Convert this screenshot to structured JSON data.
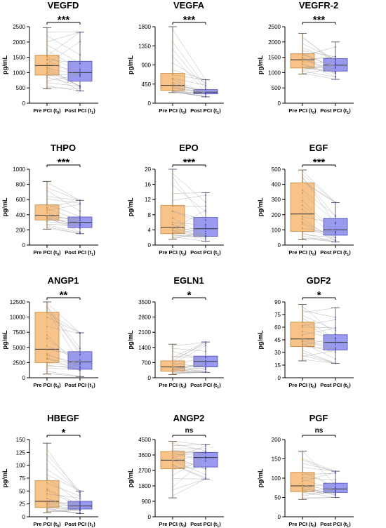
{
  "colors": {
    "pre": "#f6bd7b",
    "post": "#8f8ff0",
    "pre_stroke": "#c98a3c",
    "post_stroke": "#4a4ac0",
    "lines": "#9a9a9a"
  },
  "chart_data": [
    {
      "type": "box",
      "title": "VEGFD",
      "ylabel": "pg/mL",
      "significance": "***",
      "ylim": [
        0,
        2500
      ],
      "ticks": [
        0,
        500,
        1000,
        1500,
        2000,
        2500
      ],
      "categories": [
        "Pre PCI (t0)",
        "Post PCI (t1)"
      ],
      "series": [
        {
          "min": 470,
          "q1": 920,
          "median": 1230,
          "q3": 1570,
          "max": 2470
        },
        {
          "min": 400,
          "q1": 720,
          "median": 1000,
          "q3": 1370,
          "max": 2320
        }
      ]
    },
    {
      "type": "box",
      "title": "VEGFA",
      "ylabel": "pg/mL",
      "significance": "***",
      "ylim": [
        0,
        1800
      ],
      "ticks": [
        0,
        450,
        900,
        1350,
        1800
      ],
      "categories": [
        "Pre PCI (t0)",
        "Post PCI (t1)"
      ],
      "series": [
        {
          "min": 250,
          "q1": 300,
          "median": 420,
          "q3": 700,
          "max": 1800
        },
        {
          "min": 150,
          "q1": 220,
          "median": 260,
          "q3": 320,
          "max": 550
        }
      ]
    },
    {
      "type": "box",
      "title": "VEGFR-2",
      "ylabel": "pg/mL",
      "significance": "***",
      "ylim": [
        0,
        2500
      ],
      "ticks": [
        0,
        500,
        1000,
        1500,
        2000,
        2500
      ],
      "categories": [
        "Pre PCI (t0)",
        "Post PCI (t1)"
      ],
      "series": [
        {
          "min": 950,
          "q1": 1150,
          "median": 1420,
          "q3": 1620,
          "max": 2280
        },
        {
          "min": 780,
          "q1": 1050,
          "median": 1240,
          "q3": 1460,
          "max": 2000
        }
      ]
    },
    {
      "type": "box",
      "title": "THPO",
      "ylabel": "pg/mL",
      "significance": "***",
      "ylim": [
        0,
        1000
      ],
      "ticks": [
        0,
        200,
        400,
        600,
        800,
        1000
      ],
      "categories": [
        "Pre PCI (t0)",
        "Post PCI (t1)"
      ],
      "series": [
        {
          "min": 210,
          "q1": 330,
          "median": 390,
          "q3": 530,
          "max": 840
        },
        {
          "min": 150,
          "q1": 230,
          "median": 300,
          "q3": 370,
          "max": 590
        }
      ]
    },
    {
      "type": "box",
      "title": "EPO",
      "ylabel": "pg/mL",
      "significance": "***",
      "ylim": [
        0,
        20
      ],
      "ticks": [
        0,
        4,
        8,
        12,
        16,
        20
      ],
      "categories": [
        "Pre PCI (t0)",
        "Post PCI (t1)"
      ],
      "series": [
        {
          "min": 1.5,
          "q1": 3.0,
          "median": 4.7,
          "q3": 10.5,
          "max": 20.0
        },
        {
          "min": 1.0,
          "q1": 2.3,
          "median": 4.3,
          "q3": 7.3,
          "max": 13.8
        }
      ]
    },
    {
      "type": "box",
      "title": "EGF",
      "ylabel": "pg/mL",
      "significance": "***",
      "ylim": [
        0,
        500
      ],
      "ticks": [
        0,
        100,
        200,
        300,
        400,
        500
      ],
      "categories": [
        "Pre PCI (t0)",
        "Post PCI (t1)"
      ],
      "series": [
        {
          "min": 35,
          "q1": 90,
          "median": 205,
          "q3": 410,
          "max": 495
        },
        {
          "min": 20,
          "q1": 65,
          "median": 100,
          "q3": 175,
          "max": 280
        }
      ]
    },
    {
      "type": "box",
      "title": "ANGP1",
      "ylabel": "pg/mL",
      "significance": "**",
      "ylim": [
        0,
        12500
      ],
      "ticks": [
        0,
        2500,
        5000,
        7500,
        10000,
        12500
      ],
      "categories": [
        "Pre PCI (t0)",
        "Post PCI (t1)"
      ],
      "series": [
        {
          "min": 600,
          "q1": 2500,
          "median": 4700,
          "q3": 10800,
          "max": 12500
        },
        {
          "min": 200,
          "q1": 1400,
          "median": 2600,
          "q3": 4300,
          "max": 7400
        }
      ]
    },
    {
      "type": "box",
      "title": "EGLN1",
      "ylabel": "pg/mL",
      "significance": "*",
      "ylim": [
        0,
        3500
      ],
      "ticks": [
        0,
        700,
        1400,
        2100,
        2800,
        3500
      ],
      "categories": [
        "Pre PCI (t0)",
        "Post PCI (t1)"
      ],
      "series": [
        {
          "min": 150,
          "q1": 300,
          "median": 500,
          "q3": 780,
          "max": 1550
        },
        {
          "min": 250,
          "q1": 500,
          "median": 750,
          "q3": 1000,
          "max": 1650
        }
      ]
    },
    {
      "type": "box",
      "title": "GDF2",
      "ylabel": "pg/mL",
      "significance": "*",
      "ylim": [
        0,
        90
      ],
      "ticks": [
        0,
        15,
        30,
        45,
        60,
        75,
        90
      ],
      "categories": [
        "Pre PCI (t0)",
        "Post PCI (t1)"
      ],
      "series": [
        {
          "min": 20,
          "q1": 37,
          "median": 46,
          "q3": 66,
          "max": 87
        },
        {
          "min": 17,
          "q1": 33,
          "median": 42,
          "q3": 51,
          "max": 83
        }
      ]
    },
    {
      "type": "box",
      "title": "HBEGF",
      "ylabel": "pg/mL",
      "significance": "*",
      "ylim": [
        0,
        150
      ],
      "ticks": [
        0,
        25,
        50,
        75,
        100,
        125,
        150
      ],
      "categories": [
        "Pre PCI (t0)",
        "Post PCI (t1)"
      ],
      "series": [
        {
          "min": 8,
          "q1": 18,
          "median": 30,
          "q3": 70,
          "max": 143
        },
        {
          "min": 6,
          "q1": 15,
          "median": 21,
          "q3": 30,
          "max": 50
        }
      ]
    },
    {
      "type": "box",
      "title": "ANGP2",
      "ylabel": "pg/mL",
      "significance": "ns",
      "ylim": [
        0,
        4500
      ],
      "ticks": [
        0,
        900,
        1800,
        2700,
        3600,
        4500
      ],
      "categories": [
        "Pre PCI (t0)",
        "Post PCI (t1)"
      ],
      "series": [
        {
          "min": 1100,
          "q1": 2800,
          "median": 3300,
          "q3": 3800,
          "max": 4400
        },
        {
          "min": 2200,
          "q1": 2900,
          "median": 3450,
          "q3": 3750,
          "max": 4200
        }
      ]
    },
    {
      "type": "box",
      "title": "PGF",
      "ylabel": "pg/mL",
      "significance": "ns",
      "ylim": [
        0,
        200
      ],
      "ticks": [
        0,
        50,
        100,
        150,
        200
      ],
      "categories": [
        "Pre PCI (t0)",
        "Post PCI (t1)"
      ],
      "series": [
        {
          "min": 45,
          "q1": 65,
          "median": 80,
          "q3": 115,
          "max": 170
        },
        {
          "min": 50,
          "q1": 63,
          "median": 72,
          "q3": 87,
          "max": 118
        }
      ]
    }
  ]
}
